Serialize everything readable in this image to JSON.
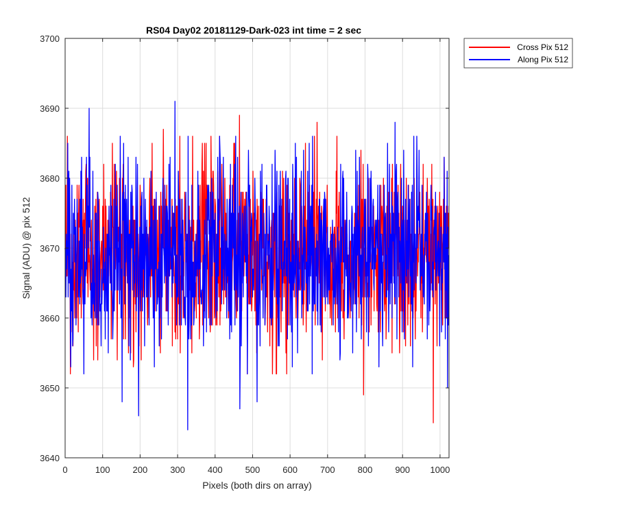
{
  "chart_data": {
    "type": "line",
    "title": "RS04 Day02 20181129-Dark-023 int time = 2 sec",
    "xlabel": "Pixels (both dirs on array)",
    "ylabel": "Signal (ADU) @ pix 512",
    "xlim": [
      0,
      1024
    ],
    "ylim": [
      3640,
      3700
    ],
    "xticks": [
      0,
      100,
      200,
      300,
      400,
      500,
      600,
      700,
      800,
      900,
      1000
    ],
    "yticks": [
      3640,
      3650,
      3660,
      3670,
      3680,
      3690,
      3700
    ],
    "grid": true,
    "legend_position": "outside-top-right",
    "noise_summary": {
      "points_per_series": 1024,
      "mean": 3669,
      "typical_range": [
        3655,
        3683
      ]
    },
    "series": [
      {
        "name": "Cross Pix 512",
        "color": "#ff0000",
        "x": [
          0,
          14,
          103,
          262,
          306,
          465,
          641,
          672,
          796,
          982
        ],
        "y": [
          3670,
          3652,
          3682,
          3687,
          3686,
          3689,
          3685,
          3688,
          3649,
          3645
        ]
      },
      {
        "name": "Along Pix 512",
        "color": "#0000ff",
        "x": [
          0,
          7,
          64,
          152,
          196,
          293,
          327,
          466,
          512,
          880,
          1020
        ],
        "y": [
          3670,
          3685,
          3690,
          3648,
          3646,
          3691,
          3644,
          3647,
          3648,
          3688,
          3650
        ]
      }
    ]
  }
}
